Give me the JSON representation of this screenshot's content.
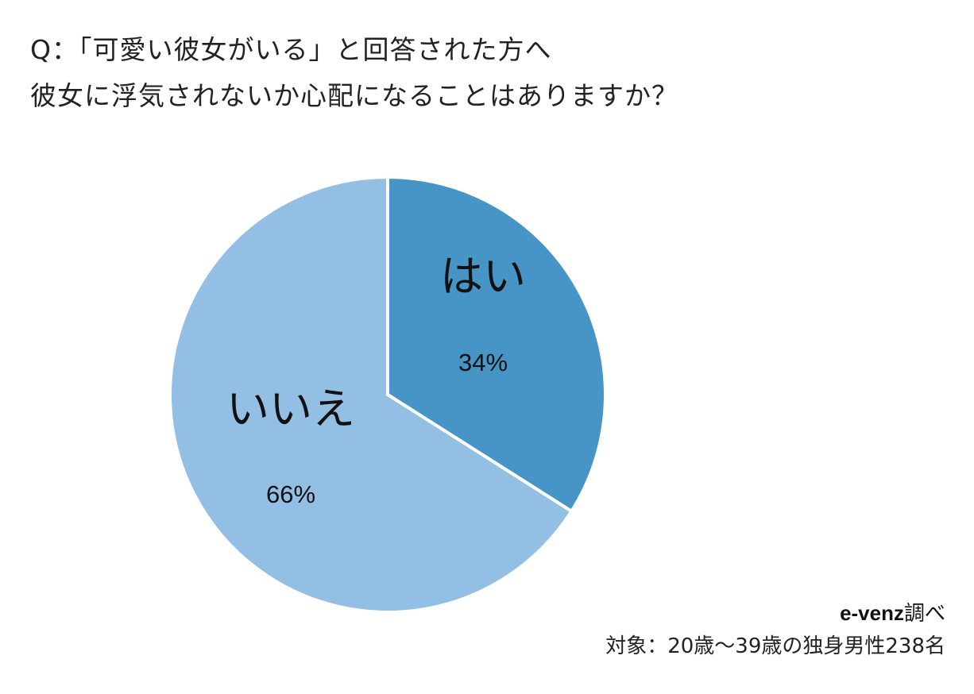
{
  "question": {
    "line1": "Q：「可愛い彼女がいる」と回答された方へ",
    "line2": "彼女に浮気されないか心配になることはありますか？"
  },
  "chart_data": {
    "type": "pie",
    "title": "",
    "slices": [
      {
        "label": "はい",
        "value": 34,
        "value_label": "34%",
        "color": "#4794c6"
      },
      {
        "label": "いいえ",
        "value": 66,
        "value_label": "66%",
        "color": "#94bfe4"
      }
    ],
    "start": "12 o'clock",
    "direction": "clockwise",
    "separator_color": "#ffffff"
  },
  "footer": {
    "source_brand": "e-venz",
    "source_suffix": "調べ",
    "sample": "対象：20歳〜39歳の独身男性238名"
  }
}
